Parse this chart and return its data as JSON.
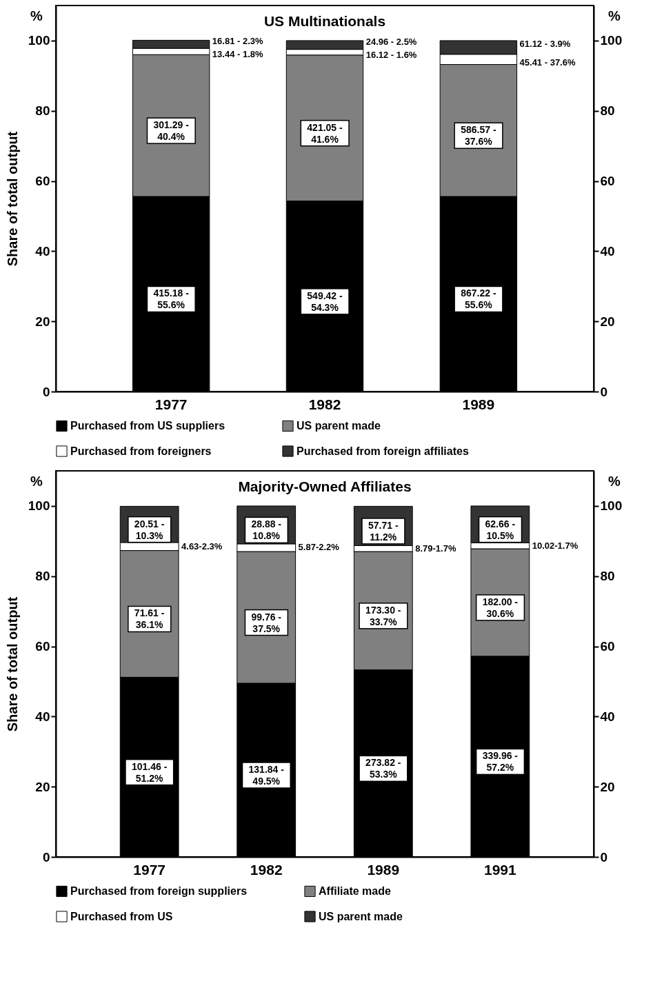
{
  "chart_data": [
    {
      "type": "bar",
      "title": "US Multinationals",
      "ylabel": "Share of total output",
      "y2label": "%",
      "categories": [
        "1977",
        "1982",
        "1989"
      ],
      "stacked": true,
      "legend": "bottom",
      "series": [
        {
          "name": "Purchased from US suppliers",
          "color": "#000000",
          "values": [
            55.6,
            54.3,
            55.6
          ]
        },
        {
          "name": "US parent made",
          "color": "#808080",
          "values": [
            40.4,
            41.6,
            37.6
          ]
        },
        {
          "name": "Purchased from foreigners",
          "color": "#ffffff",
          "values": [
            1.8,
            1.6,
            2.9
          ]
        },
        {
          "name": "Purchased from foreign affiliates",
          "color": "#333333",
          "values": [
            2.3,
            2.5,
            3.9
          ]
        }
      ],
      "annotations": [
        "%",
        "415.18 - 55.6%",
        "549.42 - 54.3%",
        "867.22 - 55.6%",
        "301.29 - 40.4%",
        "421.05 - 41.6%",
        "586.57 - 37.6%",
        "13.44 - 1.8%",
        "16.12 - 1.6%",
        "45.41 - 37.6%",
        "16.81 - 2.3%",
        "24.96 - 2.5%",
        "61.12 - 3.9%"
      ],
      "ylim": [
        0,
        110
      ],
      "yticks": [
        0,
        20,
        40,
        60,
        80,
        100
      ],
      "y2lim": [
        0,
        110
      ],
      "y2ticks": [
        0,
        20,
        40,
        60,
        80,
        100
      ]
    },
    {
      "type": "bar",
      "title": "Majority-Owned Affiliates",
      "ylabel": "Share of total output",
      "y2label": "%",
      "categories": [
        "1977",
        "1982",
        "1989",
        "1991"
      ],
      "stacked": true,
      "legend": "bottom",
      "series": [
        {
          "name": "Purchased from foreign suppliers",
          "color": "#000000",
          "values": [
            51.2,
            49.5,
            53.3,
            57.2
          ]
        },
        {
          "name": "Affiliate made",
          "color": "#808080",
          "values": [
            36.1,
            37.5,
            33.7,
            30.6
          ]
        },
        {
          "name": "Purchased from US",
          "color": "#ffffff",
          "values": [
            2.3,
            2.2,
            1.7,
            1.7
          ]
        },
        {
          "name": "US parent made",
          "color": "#333333",
          "values": [
            10.3,
            10.8,
            11.2,
            10.5
          ]
        }
      ],
      "annotations": [
        "%",
        "101.46 - 51.2%",
        "131.84 - 49.5%",
        "273.82 - 53.3%",
        "339.96 - 57.2%",
        "71.61 - 36.1%",
        "99.76 - 37.5%",
        "173.30 - 33.7%",
        "182.00 - 30.6%",
        "4.63-2.3%",
        "5.87-2.2%",
        "8.79-1.7%",
        "10.02-1.7%",
        "20.51 - 10.3%",
        "28.88 - 10.8%",
        "57.71 - 11.2%",
        "62.66 - 10.5%"
      ],
      "ylim": [
        0,
        110
      ],
      "yticks": [
        0,
        20,
        40,
        60,
        80,
        100
      ],
      "y2lim": [
        0,
        110
      ],
      "y2ticks": [
        0,
        20,
        40,
        60,
        80,
        100
      ]
    }
  ]
}
